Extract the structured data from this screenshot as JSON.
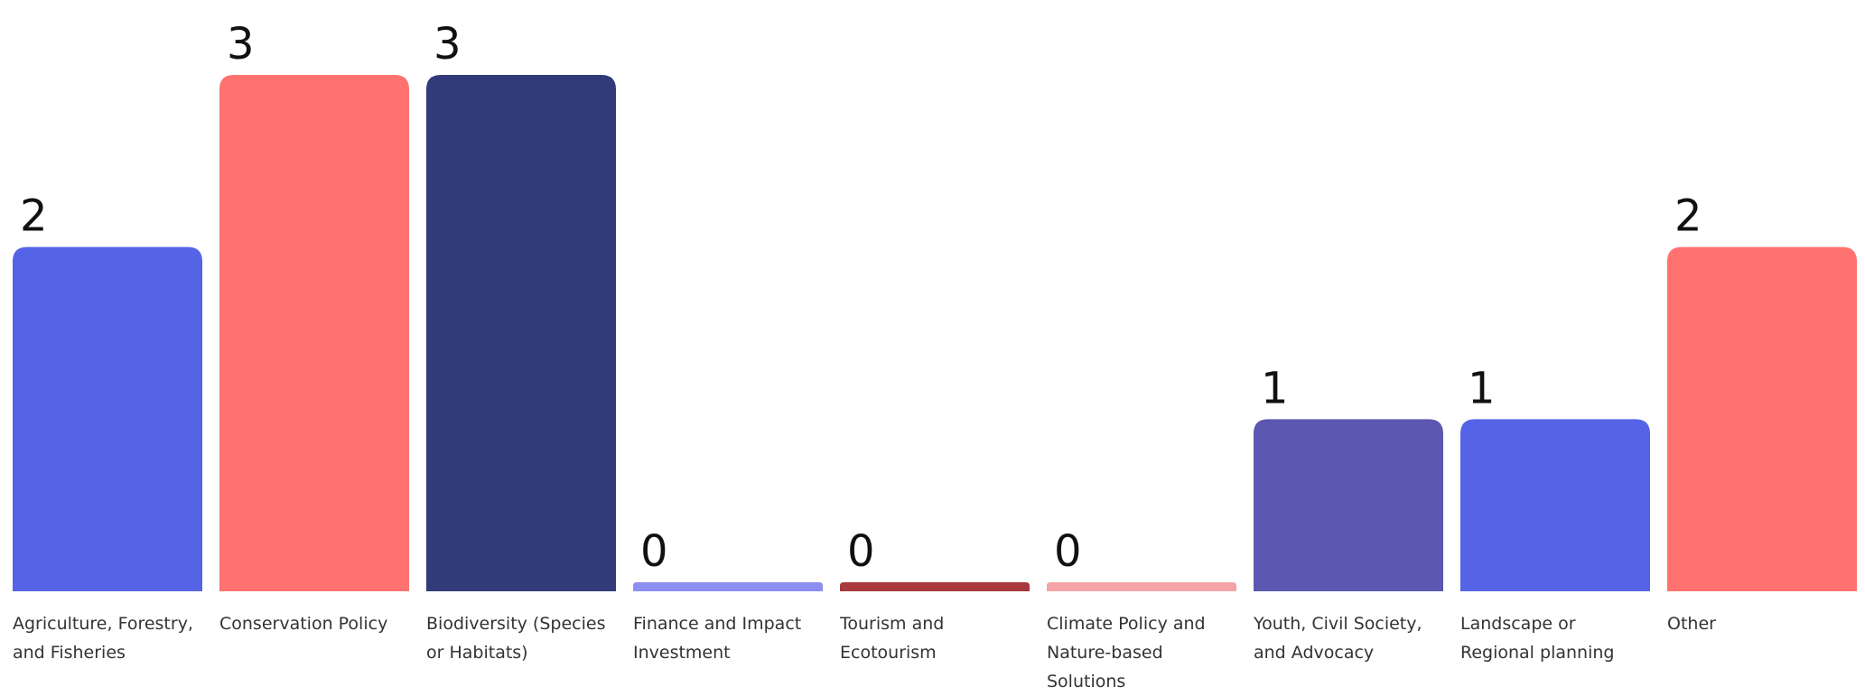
{
  "chart_data": {
    "type": "bar",
    "categories": [
      "Agriculture, Forestry, and Fisheries",
      "Conservation Policy",
      "Biodiversity (Species or Habitats)",
      "Finance and Impact Investment",
      "Tourism and Ecotourism",
      "Climate Policy and Nature-based Solutions",
      "Youth, Civil Society, and Advocacy",
      "Landscape or Regional planning",
      "Other"
    ],
    "values": [
      2,
      3,
      3,
      0,
      0,
      0,
      1,
      1,
      2
    ],
    "value_labels": [
      "2",
      "3",
      "3",
      "0",
      "0",
      "0",
      "1",
      "1",
      "2"
    ],
    "colors": [
      "#5563e6",
      "#ff726f",
      "#313b7a",
      "#8c8ff0",
      "#a8393c",
      "#f5a3a6",
      "#5c57b0",
      "#5563e6",
      "#ff726f"
    ],
    "ylim": [
      0,
      3
    ],
    "grid": false,
    "legend": "none",
    "title": "",
    "xlabel": "",
    "ylabel": ""
  }
}
